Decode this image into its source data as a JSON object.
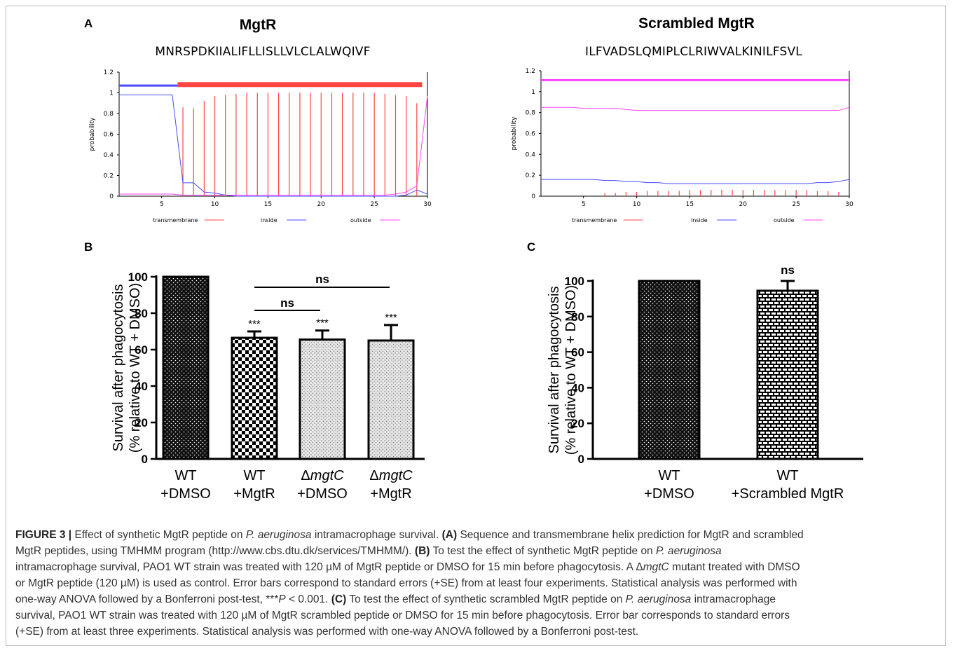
{
  "colors": {
    "transmembrane": "#ff4444",
    "inside": "#4a4aff",
    "outside": "#ff44ff",
    "frame": "#bdbdbd",
    "caption_text": "#333333"
  },
  "panel_labels": {
    "a": "A",
    "b": "B",
    "c": "C"
  },
  "tmhmm_mgtr": {
    "title": "MgtR",
    "sequence": "MNRSPDKIIALIFLLISLLVLCLALWQIVF",
    "ylabel": "probability",
    "yticks": [
      "0",
      "0.2",
      "0.4",
      "0.6",
      "0.8",
      "1",
      "1.2"
    ],
    "xticks": [
      "5",
      "10",
      "15",
      "20",
      "25",
      "30"
    ],
    "legend": [
      "transmembrane",
      "inside",
      "outside"
    ]
  },
  "tmhmm_scrambled": {
    "title": "Scrambled MgtR",
    "sequence": "ILFVADSLQMIPLCLRIWVALKINILFSVL",
    "ylabel": "probability",
    "yticks": [
      "0",
      "0.2",
      "0.4",
      "0.6",
      "0.8",
      "1",
      "1.2"
    ],
    "xticks": [
      "5",
      "10",
      "15",
      "20",
      "25",
      "30"
    ],
    "legend": [
      "transmembrane",
      "inside",
      "outside"
    ]
  },
  "panel_b": {
    "ylabel_line1": "Survival after phagocytosis",
    "ylabel_line2": "(% relative to WT + DMSO)",
    "yticks": [
      "0",
      "20",
      "40",
      "60",
      "80",
      "100"
    ],
    "bars": [
      {
        "line1": "WT",
        "line2": "+DMSO",
        "italic": false
      },
      {
        "line1": "WT",
        "line2": "+MgtR",
        "italic": false
      },
      {
        "line1": "Δ",
        "line1_italic": "mgtC",
        "line2": "+DMSO",
        "italic": true
      },
      {
        "line1": "Δ",
        "line1_italic": "mgtC",
        "line2": "+MgtR",
        "italic": true
      }
    ],
    "sig": [
      "***",
      "***",
      "***"
    ],
    "ns_labels": [
      "ns",
      "ns"
    ]
  },
  "panel_c": {
    "ylabel_line1": "Survival after phagocytosis",
    "ylabel_line2": "(% relative to WT + DMSO)",
    "yticks": [
      "0",
      "20",
      "40",
      "60",
      "80",
      "100"
    ],
    "bars": [
      {
        "line1": "WT",
        "line2": "+DMSO"
      },
      {
        "line1": "WT",
        "line2": "+Scrambled MgtR"
      }
    ],
    "ns_label": "ns"
  },
  "chart_data": [
    {
      "type": "line",
      "panel": "A",
      "title": "MgtR",
      "subtitle": "MNRSPDKIIALIFLLISLLVLCLALWQIVF",
      "xlabel": "",
      "ylabel": "probability",
      "xlim": [
        1,
        30
      ],
      "ylim": [
        0,
        1.2
      ],
      "x": [
        1,
        2,
        3,
        4,
        5,
        6,
        7,
        8,
        9,
        10,
        11,
        12,
        13,
        14,
        15,
        16,
        17,
        18,
        19,
        20,
        21,
        22,
        23,
        24,
        25,
        26,
        27,
        28,
        29,
        30
      ],
      "series": [
        {
          "name": "transmembrane",
          "style": "impulses",
          "values": [
            0,
            0,
            0,
            0,
            0,
            0,
            0.86,
            0.85,
            0.92,
            0.97,
            0.98,
            0.99,
            1.0,
            1.0,
            1.0,
            1.0,
            1.0,
            1.0,
            1.0,
            1.0,
            1.0,
            1.0,
            1.0,
            1.0,
            1.0,
            0.99,
            0.98,
            0.97,
            0.9,
            0
          ]
        },
        {
          "name": "inside",
          "values": [
            0.98,
            0.98,
            0.98,
            0.98,
            0.98,
            0.98,
            0.13,
            0.13,
            0.04,
            0.03,
            0.01,
            0,
            0,
            0,
            0,
            0,
            0,
            0,
            0,
            0,
            0,
            0,
            0,
            0,
            0,
            0,
            0,
            0.01,
            0.06,
            0.02
          ]
        },
        {
          "name": "outside",
          "values": [
            0.02,
            0.02,
            0.02,
            0.02,
            0.02,
            0.02,
            0.01,
            0.01,
            0.01,
            0.01,
            0.01,
            0.01,
            0.01,
            0.01,
            0.01,
            0.01,
            0.01,
            0.01,
            0.01,
            0.01,
            0.01,
            0.01,
            0.01,
            0.01,
            0.01,
            0.01,
            0.02,
            0.04,
            0.1,
            0.97
          ]
        }
      ],
      "segments": [
        {
          "name": "inside",
          "start": 1,
          "end": 6,
          "y": 1.07
        },
        {
          "name": "transmembrane",
          "start": 7,
          "end": 29,
          "y": 1.08
        }
      ],
      "legend": [
        "transmembrane",
        "inside",
        "outside"
      ],
      "legend_position": "bottom"
    },
    {
      "type": "line",
      "panel": "A",
      "title": "Scrambled MgtR",
      "subtitle": "ILFVADSLQMIPLCLRIWVALKINILFSVL",
      "xlabel": "",
      "ylabel": "probability",
      "xlim": [
        1,
        30
      ],
      "ylim": [
        0,
        1.2
      ],
      "x": [
        1,
        2,
        3,
        4,
        5,
        6,
        7,
        8,
        9,
        10,
        11,
        12,
        13,
        14,
        15,
        16,
        17,
        18,
        19,
        20,
        21,
        22,
        23,
        24,
        25,
        26,
        27,
        28,
        29,
        30
      ],
      "series": [
        {
          "name": "transmembrane",
          "style": "impulses",
          "values": [
            0,
            0,
            0,
            0,
            0,
            0,
            0.03,
            0.03,
            0.04,
            0.04,
            0.05,
            0.05,
            0.05,
            0.05,
            0.06,
            0.06,
            0.06,
            0.06,
            0.06,
            0.06,
            0.06,
            0.06,
            0.06,
            0.06,
            0.06,
            0.06,
            0.05,
            0.05,
            0.04,
            0
          ]
        },
        {
          "name": "inside",
          "values": [
            0.16,
            0.16,
            0.16,
            0.16,
            0.16,
            0.16,
            0.15,
            0.15,
            0.14,
            0.14,
            0.13,
            0.13,
            0.12,
            0.12,
            0.12,
            0.12,
            0.12,
            0.12,
            0.12,
            0.12,
            0.12,
            0.12,
            0.12,
            0.12,
            0.12,
            0.12,
            0.13,
            0.13,
            0.14,
            0.16
          ]
        },
        {
          "name": "outside",
          "values": [
            0.85,
            0.85,
            0.85,
            0.85,
            0.84,
            0.84,
            0.84,
            0.84,
            0.83,
            0.82,
            0.82,
            0.82,
            0.82,
            0.82,
            0.82,
            0.82,
            0.82,
            0.82,
            0.82,
            0.82,
            0.82,
            0.82,
            0.82,
            0.82,
            0.82,
            0.82,
            0.82,
            0.82,
            0.82,
            0.85
          ]
        }
      ],
      "segments": [
        {
          "name": "outside",
          "start": 1,
          "end": 30,
          "y": 1.11
        }
      ],
      "legend": [
        "transmembrane",
        "inside",
        "outside"
      ],
      "legend_position": "bottom"
    },
    {
      "type": "bar",
      "panel": "B",
      "ylabel": "Survival after phagocytosis (% relative to WT + DMSO)",
      "categories": [
        "WT +DMSO",
        "WT +MgtR",
        "ΔmgtC +DMSO",
        "ΔmgtC +MgtR"
      ],
      "values": [
        100,
        66.5,
        65.5,
        65
      ],
      "errors": [
        0,
        3.5,
        5,
        8.5
      ],
      "ylim": [
        0,
        100
      ],
      "annotations": [
        {
          "category": "WT +MgtR",
          "text": "***"
        },
        {
          "category": "ΔmgtC +DMSO",
          "text": "***"
        },
        {
          "category": "ΔmgtC +MgtR",
          "text": "***"
        },
        {
          "between": [
            "WT +MgtR",
            "ΔmgtC +DMSO"
          ],
          "text": "ns"
        },
        {
          "between": [
            "WT +MgtR",
            "ΔmgtC +MgtR"
          ],
          "text": "ns"
        }
      ]
    },
    {
      "type": "bar",
      "panel": "C",
      "ylabel": "Survival after phagocytosis (% relative to WT + DMSO)",
      "categories": [
        "WT +DMSO",
        "WT +Scrambled MgtR"
      ],
      "values": [
        100,
        94.5
      ],
      "errors": [
        0,
        5.5
      ],
      "ylim": [
        0,
        100
      ],
      "annotations": [
        {
          "category": "WT +Scrambled MgtR",
          "text": "ns"
        }
      ]
    }
  ],
  "caption": {
    "fig_id": "FIGURE 3 |",
    "lines": [
      [
        {
          "t": " Effect of synthetic MgtR peptide on "
        },
        {
          "t": "P. aeruginosa",
          "i": true
        },
        {
          "t": " intramacrophage survival. "
        },
        {
          "t": "(A)",
          "b": true
        },
        {
          "t": " Sequence and transmembrane helix prediction for MgtR and scrambled"
        }
      ],
      [
        {
          "t": "MgtR peptides, using TMHMM program (http://www.cbs.dtu.dk/services/TMHMM/). "
        },
        {
          "t": "(B)",
          "b": true
        },
        {
          "t": " To test the effect of synthetic MgtR peptide on "
        },
        {
          "t": "P. aeruginosa",
          "i": true
        }
      ],
      [
        {
          "t": "intramacrophage survival, PAO1 WT strain was treated with 120 µM of MgtR peptide or DMSO for 15 min before phagocytosis. A Δ"
        },
        {
          "t": "mgtC",
          "i": true
        },
        {
          "t": " mutant treated with DMSO"
        }
      ],
      [
        {
          "t": "or MgtR peptide (120 µM) is used as control. Error bars correspond to standard errors (+SE) from at least four experiments. Statistical analysis was performed with"
        }
      ],
      [
        {
          "t": "one-way ANOVA followed by a Bonferroni post-test, ***"
        },
        {
          "t": "P",
          "i": true
        },
        {
          "t": " < 0.001. "
        },
        {
          "t": "(C)",
          "b": true
        },
        {
          "t": " To test the effect of synthetic scrambled MgtR peptide on "
        },
        {
          "t": "P. aeruginosa",
          "i": true
        },
        {
          "t": " intramacrophage"
        }
      ],
      [
        {
          "t": "survival, PAO1 WT strain was treated with 120 µM of MgtR scrambled peptide or DMSO for 15 min before phagocytosis. Error bar corresponds to standard errors"
        }
      ],
      [
        {
          "t": "(+SE) from at least three experiments. Statistical analysis was performed with one-way ANOVA followed by a Bonferroni post-test."
        }
      ]
    ]
  }
}
